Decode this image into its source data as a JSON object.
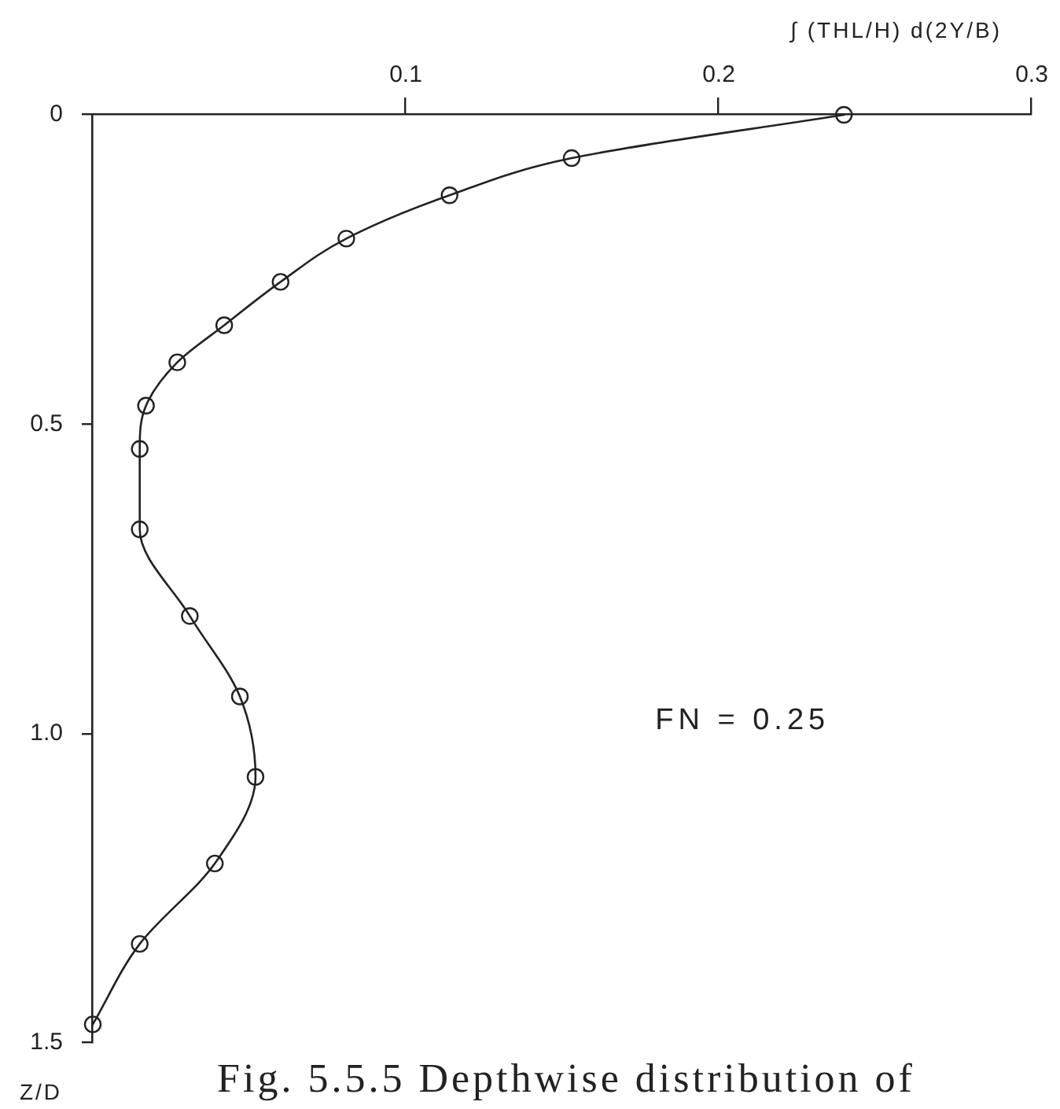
{
  "chart_data": {
    "type": "line",
    "xlabel": "∫ (THL/H) d(2Y/B)",
    "ylabel": "Z/D",
    "annotations": [
      "FN = 0.25",
      "Fig. 5.5.5 Depthwise distribution of"
    ],
    "x": [
      0.24,
      0.153,
      0.114,
      0.081,
      0.06,
      0.042,
      0.027,
      0.017,
      0.015,
      0.015,
      0.031,
      0.047,
      0.052,
      0.039,
      0.015,
      0
    ],
    "values": [
      0,
      0.07,
      0.13,
      0.2,
      0.27,
      0.34,
      0.4,
      0.47,
      0.54,
      0.67,
      0.81,
      0.94,
      1.07,
      1.21,
      1.34,
      1.47
    ],
    "color": "#222222",
    "xlim": [
      0,
      0.3
    ],
    "xticks": [
      0.1,
      0.2,
      0.3
    ],
    "ylim": [
      1.5,
      0
    ],
    "yticks": [
      0,
      0.5,
      {
        "value": 1,
        "label": "1.0"
      },
      1.5
    ],
    "grid": false,
    "legend": false,
    "marker": "circle",
    "line_style": "solid"
  }
}
